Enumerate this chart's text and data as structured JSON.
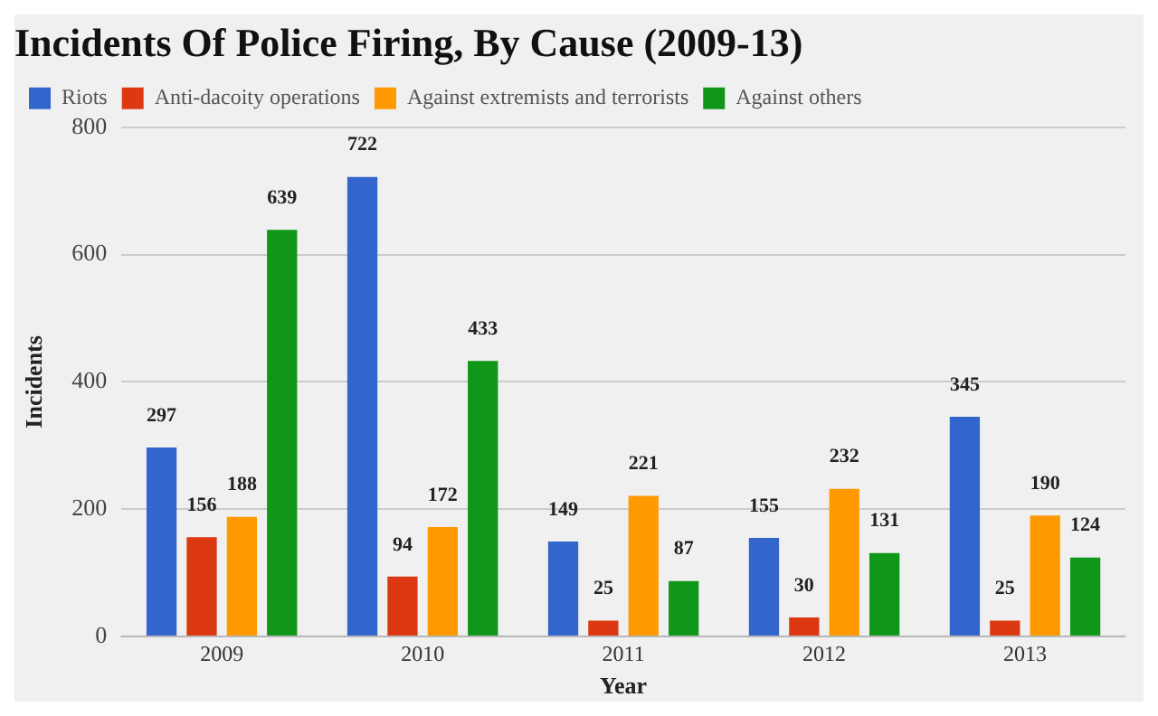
{
  "chart_data": {
    "type": "bar",
    "title": "Incidents Of Police Firing, By Cause (2009-13)",
    "xlabel": "Year",
    "ylabel": "Incidents",
    "categories": [
      "2009",
      "2010",
      "2011",
      "2012",
      "2013"
    ],
    "series": [
      {
        "name": "Riots",
        "color": "#3366cc",
        "values": [
          297,
          722,
          149,
          155,
          345
        ]
      },
      {
        "name": "Anti-dacoity operations",
        "color": "#dc3912",
        "values": [
          156,
          94,
          25,
          30,
          25
        ]
      },
      {
        "name": "Against extremists and terrorists",
        "color": "#ff9900",
        "values": [
          188,
          172,
          221,
          232,
          190
        ]
      },
      {
        "name": "Against others",
        "color": "#109618",
        "values": [
          639,
          433,
          87,
          131,
          124
        ]
      }
    ],
    "ylim": [
      0,
      800
    ],
    "yticks": [
      0,
      200,
      400,
      600,
      800
    ],
    "grid": "y",
    "legend": "top",
    "data_labels": true
  }
}
